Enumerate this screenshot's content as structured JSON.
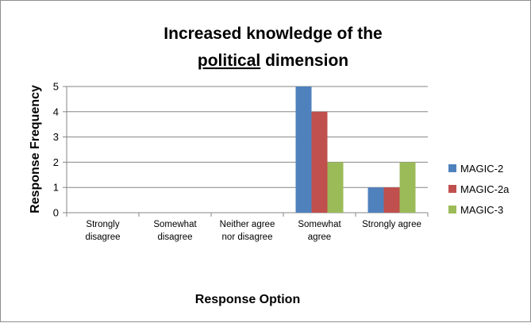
{
  "chart_data": {
    "type": "bar",
    "title_line1": "Increased knowledge of the",
    "title_underlined": "political",
    "title_rest": " dimension",
    "xlabel": "Response Option",
    "ylabel": "Response Frequency",
    "ylim": [
      0,
      5
    ],
    "yticks": [
      "0",
      "1",
      "2",
      "3",
      "4",
      "5"
    ],
    "grid": true,
    "legend_position": "right",
    "categories": [
      [
        "Strongly",
        "disagree"
      ],
      [
        "Somewhat",
        "disagree"
      ],
      [
        "Neither agree",
        "nor disagree"
      ],
      [
        "Somewhat",
        "agree"
      ],
      [
        "Strongly agree"
      ]
    ],
    "series": [
      {
        "name": "MAGIC-2",
        "color": "#4f81bd",
        "values": [
          0,
          0,
          0,
          5,
          1
        ]
      },
      {
        "name": "MAGIC-2a",
        "color": "#c0504d",
        "values": [
          0,
          0,
          0,
          4,
          1
        ]
      },
      {
        "name": "MAGIC-3",
        "color": "#9bbb59",
        "values": [
          0,
          0,
          0,
          2,
          2
        ]
      }
    ]
  }
}
